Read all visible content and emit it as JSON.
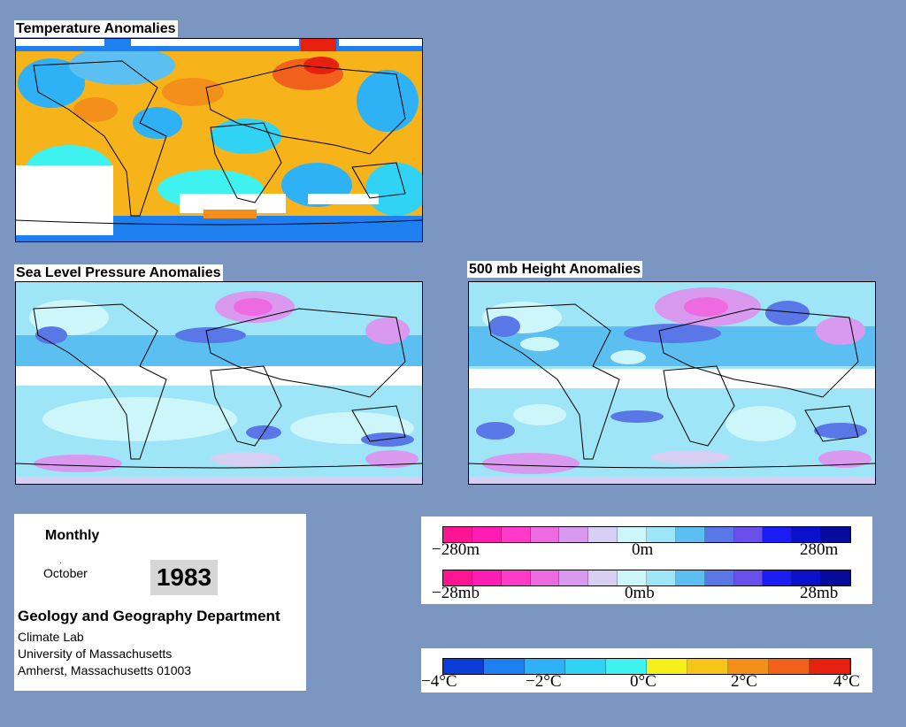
{
  "panels": {
    "temperature": {
      "title": "Temperature Anomalies"
    },
    "slp": {
      "title": "Sea Level Pressure Anomalies"
    },
    "h500": {
      "title": "500 mb Height Anomalies"
    }
  },
  "info": {
    "period": "Monthly",
    "month": "October",
    "year": "1983",
    "department": "Geology and Geography Department",
    "lines": [
      "Climate Lab",
      "University of Massachusetts",
      "Amherst, Massachusetts 01003"
    ]
  },
  "legends": {
    "height": {
      "labels": [
        "−280m",
        "0m",
        "280m"
      ]
    },
    "pressure": {
      "labels": [
        "−28mb",
        "0mb",
        "28mb"
      ]
    },
    "temperature": {
      "labels": [
        "−4°C",
        "−2°C",
        "0°C",
        "2°C",
        "4°C"
      ]
    }
  },
  "colors": {
    "background": "#7b96c0",
    "pressure_scale": [
      "#ff1493",
      "#ff1cb5",
      "#ff3ac8",
      "#ee6ae0",
      "#d899ee",
      "#d7cff3",
      "#cdf6fb",
      "#9ee5f7",
      "#5cbff2",
      "#5a77e8",
      "#6a4fea",
      "#1b1df2",
      "#0a10cc",
      "#060b9c"
    ],
    "temperature_scale": [
      "#0a3cd8",
      "#1d7ff0",
      "#2fb2f5",
      "#30d3f3",
      "#3ef3ef",
      "#f5ef1a",
      "#f7c418",
      "#f58f1c",
      "#f2611c",
      "#e8200f"
    ]
  }
}
